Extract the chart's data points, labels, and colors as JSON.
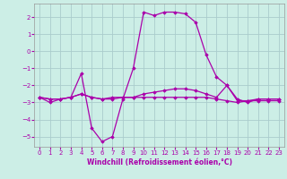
{
  "background_color": "#cceee6",
  "grid_color": "#aacccc",
  "line_color": "#aa00aa",
  "marker_color": "#aa00aa",
  "xlabel": "Windchill (Refroidissement éolien,°C)",
  "xlim": [
    -0.5,
    23.5
  ],
  "ylim": [
    -5.6,
    2.8
  ],
  "yticks": [
    -5,
    -4,
    -3,
    -2,
    -1,
    0,
    1,
    2
  ],
  "xticks": [
    0,
    1,
    2,
    3,
    4,
    5,
    6,
    7,
    8,
    9,
    10,
    11,
    12,
    13,
    14,
    15,
    16,
    17,
    18,
    19,
    20,
    21,
    22,
    23
  ],
  "tick_fontsize": 5.0,
  "xlabel_fontsize": 5.5,
  "curve1_x": [
    0,
    1,
    2,
    3,
    4,
    5,
    6,
    7,
    8,
    9,
    10,
    11,
    12,
    13,
    14,
    15,
    16,
    17,
    18,
    19,
    20,
    21,
    22,
    23
  ],
  "curve1_y": [
    -2.7,
    -3.0,
    -2.8,
    -2.7,
    -1.3,
    -4.5,
    -5.3,
    -5.0,
    -2.8,
    -1.0,
    2.3,
    2.1,
    2.3,
    2.3,
    2.2,
    1.7,
    -0.2,
    -1.5,
    -2.0,
    -2.8,
    -3.0,
    -2.8,
    -2.8,
    -2.8
  ],
  "curve2_x": [
    0,
    1,
    2,
    3,
    4,
    5,
    6,
    7,
    8,
    9,
    10,
    11,
    12,
    13,
    14,
    15,
    16,
    17,
    18,
    19,
    20,
    21,
    22,
    23
  ],
  "curve2_y": [
    -2.7,
    -2.8,
    -2.8,
    -2.7,
    -2.5,
    -2.7,
    -2.8,
    -2.8,
    -2.7,
    -2.7,
    -2.7,
    -2.7,
    -2.7,
    -2.7,
    -2.7,
    -2.7,
    -2.7,
    -2.8,
    -2.9,
    -3.0,
    -2.9,
    -2.9,
    -2.9,
    -2.9
  ],
  "curve3_x": [
    0,
    1,
    2,
    3,
    4,
    5,
    6,
    7,
    8,
    9,
    10,
    11,
    12,
    13,
    14,
    15,
    16,
    17,
    18,
    19,
    20,
    21,
    22,
    23
  ],
  "curve3_y": [
    -2.7,
    -2.8,
    -2.8,
    -2.7,
    -2.5,
    -2.7,
    -2.8,
    -2.7,
    -2.7,
    -2.7,
    -2.5,
    -2.4,
    -2.3,
    -2.2,
    -2.2,
    -2.3,
    -2.5,
    -2.7,
    -2.0,
    -2.9,
    -2.9,
    -2.8,
    -2.8,
    -2.8
  ]
}
